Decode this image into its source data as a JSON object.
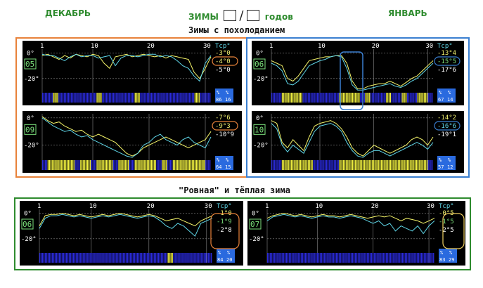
{
  "header": {
    "left_month": "ДЕКАБРЬ",
    "center_label": "ЗИМЫ",
    "separator": "/",
    "center_suffix": "годов",
    "right_month": "ЯНВАРЬ"
  },
  "sections": [
    {
      "title": "Зимы с похолоданием",
      "border_color_left": "#e8823a",
      "border_color_right": "#3a7fd0"
    },
    {
      "title": "\"Ровная\" и тёплая зима",
      "border_color": "#2e8b2e"
    }
  ],
  "colors": {
    "panel_bg": "#000000",
    "grid": "#8a8a8a",
    "line_yellow": "#f5f56a",
    "line_cyan": "#5fd6e8",
    "bar_blue": "#2a2ad8",
    "bar_yellow": "#f0f040",
    "text_white": "#ffffff",
    "text_green": "#7be07b",
    "text_yellow": "#f0f070",
    "text_cyan": "#5fd6e8",
    "badge_bg": "#2a6adf",
    "circle_orange": "#e8823a",
    "circle_blue": "#3a7fd0",
    "circle_yellow": "#f0d060",
    "highlight_box": "#3a7fd0"
  },
  "chart_data": [
    {
      "type": "line",
      "panel": "dec-05",
      "label": "05",
      "x_ticks": [
        "1",
        "10",
        "20",
        "30"
      ],
      "y_ticks": [
        "0°",
        "-20°"
      ],
      "tcp_label": "Tср°",
      "values_right": [
        {
          "text": "-3°0",
          "color": "yellow"
        },
        {
          "text": "-4°0",
          "color": "yellow",
          "circled": "orange"
        },
        {
          "text": "-5°0",
          "color": "white"
        }
      ],
      "badge": {
        "top": "%",
        "sub": "%",
        "left": "86",
        "right": "16"
      },
      "xlim": [
        1,
        31
      ],
      "ylim": [
        -30,
        3
      ],
      "series": [
        {
          "values": [
            -2,
            -1,
            -3,
            -5,
            -2,
            -4,
            -1,
            -2,
            -3,
            -1,
            -2,
            -8,
            -12,
            -3,
            -2,
            -1,
            -3,
            -2,
            -1,
            -2,
            -3,
            -2,
            -4,
            -2,
            -3,
            -4,
            -5,
            -15,
            -20,
            -12,
            -3
          ]
        },
        {
          "values": [
            -1,
            -2,
            -2,
            -4,
            -6,
            -3,
            -1,
            -3,
            -2,
            -2,
            -4,
            -3,
            -2,
            -10,
            -4,
            -2,
            -2,
            -3,
            -2,
            -1,
            -1,
            -3,
            -2,
            -3,
            -6,
            -10,
            -12,
            -18,
            -22,
            -8,
            -2
          ]
        }
      ],
      "bars": [
        0,
        0,
        1,
        0,
        0,
        0,
        0,
        0,
        0,
        0,
        1,
        0,
        0,
        0,
        0,
        0,
        0,
        1,
        0,
        0,
        0,
        0,
        0,
        0,
        0,
        0,
        0,
        0,
        1,
        0,
        0
      ]
    },
    {
      "type": "line",
      "panel": "jan-06",
      "label": "06",
      "x_ticks": [
        "1",
        "10",
        "20",
        "30"
      ],
      "y_ticks": [
        "0°",
        "-20°"
      ],
      "tcp_label": "Tср°",
      "values_right": [
        {
          "text": "-13°4",
          "color": "yellow"
        },
        {
          "text": "-15°5",
          "color": "green",
          "circled": "blue"
        },
        {
          "text": "-17°6",
          "color": "white"
        }
      ],
      "badge": {
        "top": "%",
        "sub": "%",
        "left": "67",
        "right": "14"
      },
      "xlim": [
        1,
        31
      ],
      "ylim": [
        -30,
        3
      ],
      "series": [
        {
          "values": [
            -6,
            -8,
            -10,
            -20,
            -22,
            -18,
            -12,
            -6,
            -5,
            -4,
            -3,
            -3,
            -2,
            -2,
            -8,
            -22,
            -28,
            -28,
            -26,
            -25,
            -24,
            -24,
            -22,
            -24,
            -26,
            -23,
            -20,
            -18,
            -14,
            -10,
            -6
          ]
        },
        {
          "values": [
            -8,
            -10,
            -14,
            -24,
            -25,
            -22,
            -16,
            -10,
            -8,
            -6,
            -5,
            -3,
            -2,
            -3,
            -12,
            -25,
            -29,
            -29,
            -28,
            -27,
            -26,
            -25,
            -24,
            -26,
            -27,
            -25,
            -22,
            -20,
            -16,
            -12,
            -8
          ]
        }
      ],
      "bars": [
        0,
        0,
        1,
        1,
        1,
        1,
        0,
        0,
        0,
        0,
        0,
        0,
        0,
        1,
        1,
        1,
        1,
        0,
        1,
        0,
        0,
        0,
        1,
        0,
        0,
        1,
        0,
        0,
        1,
        1,
        0
      ]
    },
    {
      "type": "line",
      "panel": "dec-09",
      "label": "09",
      "x_ticks": [],
      "y_ticks": [
        "0°",
        "-20°"
      ],
      "tcp_label": "",
      "values_right": [
        {
          "text": "-7°6",
          "color": "yellow"
        },
        {
          "text": "-9°3",
          "color": "yellow",
          "circled": "orange"
        },
        {
          "text": "-10°9",
          "color": "white"
        }
      ],
      "badge": {
        "top": "%",
        "sub": "%",
        "left": "64",
        "right": "15"
      },
      "xlim": [
        1,
        31
      ],
      "ylim": [
        -30,
        3
      ],
      "series": [
        {
          "values": [
            1,
            -2,
            -4,
            -3,
            -6,
            -8,
            -10,
            -9,
            -12,
            -14,
            -12,
            -14,
            -16,
            -18,
            -22,
            -26,
            -28,
            -26,
            -22,
            -20,
            -18,
            -16,
            -14,
            -16,
            -18,
            -20,
            -22,
            -20,
            -18,
            -16,
            -10
          ]
        },
        {
          "values": [
            0,
            -3,
            -6,
            -8,
            -10,
            -9,
            -12,
            -14,
            -13,
            -16,
            -18,
            -20,
            -22,
            -24,
            -26,
            -28,
            -29,
            -26,
            -20,
            -18,
            -14,
            -12,
            -16,
            -18,
            -20,
            -16,
            -14,
            -18,
            -20,
            -22,
            -14
          ]
        }
      ],
      "bars": [
        0,
        1,
        1,
        1,
        1,
        1,
        0,
        1,
        1,
        0,
        1,
        1,
        1,
        0,
        1,
        1,
        0,
        1,
        1,
        1,
        1,
        0,
        1,
        0,
        1,
        1,
        1,
        1,
        1,
        1,
        0
      ]
    },
    {
      "type": "line",
      "panel": "jan-10",
      "label": "10",
      "x_ticks": [],
      "y_ticks": [
        "0°",
        "-20°"
      ],
      "tcp_label": "",
      "values_right": [
        {
          "text": "-14°2",
          "color": "yellow"
        },
        {
          "text": "-16°6",
          "color": "cyan",
          "circled": "blue"
        },
        {
          "text": "-19°1",
          "color": "white"
        }
      ],
      "badge": {
        "top": "%",
        "sub": "%",
        "left": "57",
        "right": "12"
      },
      "xlim": [
        1,
        31
      ],
      "ylim": [
        -30,
        3
      ],
      "series": [
        {
          "values": [
            -2,
            -4,
            -18,
            -22,
            -16,
            -20,
            -24,
            -14,
            -6,
            -4,
            -3,
            -2,
            -4,
            -8,
            -14,
            -22,
            -26,
            -28,
            -24,
            -20,
            -22,
            -24,
            -26,
            -24,
            -22,
            -20,
            -16,
            -14,
            -16,
            -20,
            -14
          ]
        },
        {
          "values": [
            -4,
            -8,
            -20,
            -25,
            -20,
            -23,
            -26,
            -18,
            -10,
            -6,
            -5,
            -4,
            -6,
            -10,
            -18,
            -24,
            -28,
            -29,
            -26,
            -24,
            -24,
            -26,
            -28,
            -26,
            -24,
            -22,
            -20,
            -18,
            -20,
            -23,
            -18
          ]
        }
      ],
      "bars": [
        0,
        0,
        1,
        1,
        1,
        1,
        1,
        1,
        0,
        0,
        0,
        0,
        0,
        1,
        1,
        1,
        1,
        1,
        1,
        1,
        1,
        1,
        1,
        1,
        1,
        1,
        1,
        1,
        1,
        1,
        0
      ]
    },
    {
      "type": "line",
      "panel": "dec-06",
      "label": "06",
      "x_ticks": [
        "1",
        "10",
        "20",
        "30"
      ],
      "y_ticks": [
        "0°",
        "-20°"
      ],
      "tcp_label": "Tср°",
      "values_right": [
        {
          "text": "-1°0",
          "color": "yellow"
        },
        {
          "text": "-1°9",
          "color": "green"
        },
        {
          "text": "-2°8",
          "color": "white"
        }
      ],
      "badge": {
        "top": "%",
        "sub": "%",
        "left": "84",
        "right": "20"
      },
      "xlim": [
        1,
        31
      ],
      "ylim": [
        -30,
        3
      ],
      "series": [
        {
          "values": [
            -10,
            -2,
            -1,
            -1,
            0,
            -1,
            -2,
            -1,
            -2,
            -3,
            -2,
            -1,
            -2,
            -1,
            0,
            -1,
            -2,
            -3,
            -2,
            -1,
            -2,
            -4,
            -6,
            -5,
            -4,
            -6,
            -8,
            -10,
            -6,
            -4,
            -2
          ]
        },
        {
          "values": [
            -12,
            -4,
            -2,
            -2,
            -1,
            -2,
            -3,
            -2,
            -3,
            -4,
            -3,
            -2,
            -3,
            -2,
            -1,
            -2,
            -3,
            -4,
            -3,
            -2,
            -3,
            -6,
            -10,
            -12,
            -8,
            -10,
            -14,
            -18,
            -8,
            -6,
            -4
          ]
        }
      ],
      "bars": [
        0,
        0,
        0,
        0,
        0,
        0,
        0,
        0,
        0,
        0,
        0,
        0,
        0,
        0,
        0,
        0,
        0,
        0,
        0,
        0,
        0,
        0,
        0,
        1,
        0,
        0,
        0,
        0,
        0,
        0,
        0
      ]
    },
    {
      "type": "line",
      "panel": "jan-07",
      "label": "07",
      "x_ticks": [
        "1",
        "10",
        "20",
        "30"
      ],
      "y_ticks": [
        "0°",
        "-20°"
      ],
      "tcp_label": "Tср°",
      "values_right": [
        {
          "text": "-0°5",
          "color": "yellow"
        },
        {
          "text": "-1°5",
          "color": "green"
        },
        {
          "text": "-2°5",
          "color": "white"
        }
      ],
      "badge": {
        "top": "%",
        "sub": "%",
        "left": "83",
        "right": "29"
      },
      "xlim": [
        1,
        31
      ],
      "ylim": [
        -30,
        3
      ],
      "series": [
        {
          "values": [
            -4,
            -2,
            -1,
            0,
            -1,
            -2,
            -1,
            -2,
            -3,
            -2,
            -1,
            -2,
            -2,
            -3,
            -2,
            -1,
            -2,
            -3,
            -4,
            -3,
            -2,
            -3,
            -2,
            -4,
            -6,
            -4,
            -5,
            -6,
            -8,
            -6,
            -4
          ]
        },
        {
          "values": [
            -6,
            -3,
            -2,
            -1,
            -2,
            -3,
            -2,
            -3,
            -4,
            -3,
            -2,
            -3,
            -3,
            -4,
            -3,
            -2,
            -3,
            -4,
            -6,
            -8,
            -6,
            -10,
            -8,
            -14,
            -10,
            -12,
            -14,
            -10,
            -16,
            -10,
            -6
          ]
        }
      ],
      "bars": [
        0,
        0,
        0,
        0,
        0,
        0,
        0,
        0,
        0,
        0,
        0,
        0,
        0,
        0,
        0,
        0,
        0,
        0,
        0,
        0,
        0,
        0,
        0,
        0,
        0,
        0,
        0,
        0,
        0,
        0,
        0
      ]
    }
  ]
}
